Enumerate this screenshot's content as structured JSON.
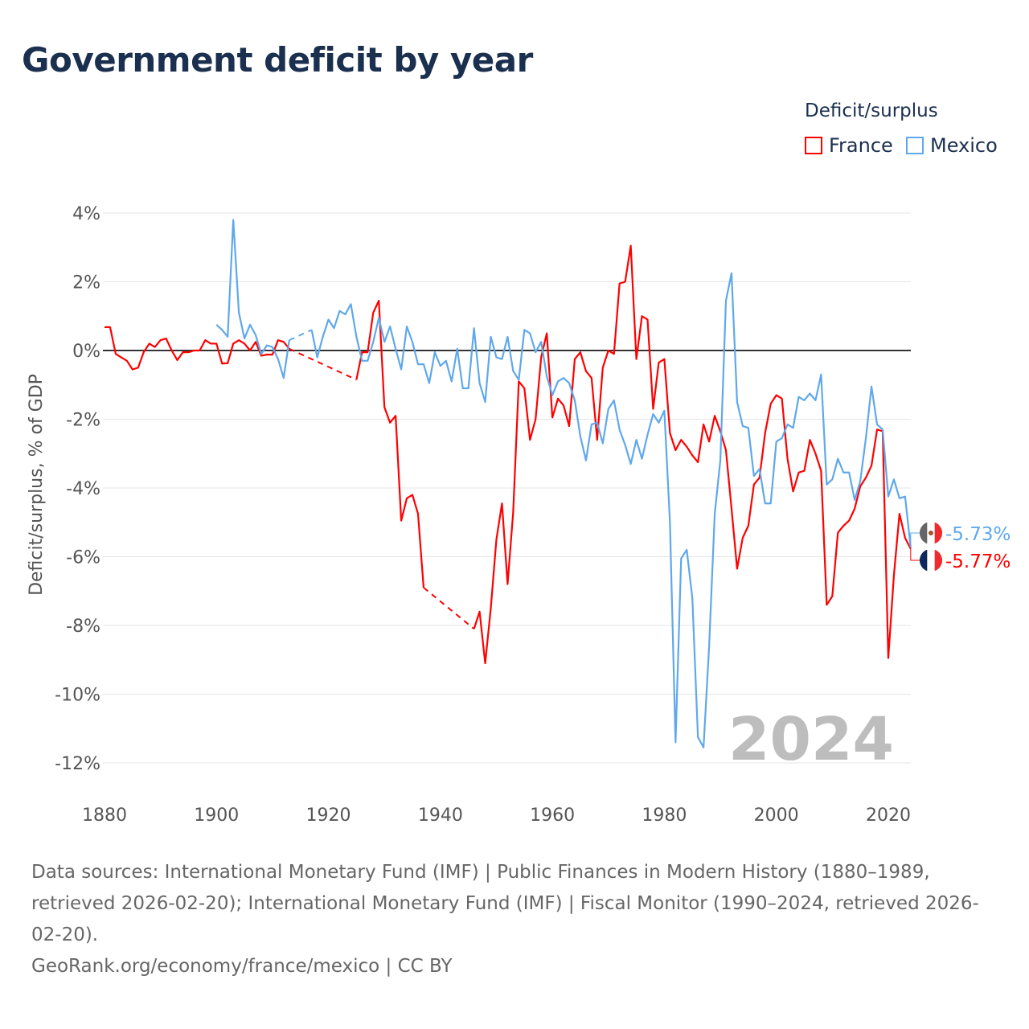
{
  "title": "Government deficit by year",
  "legend": {
    "title": "Deficit/surplus",
    "items": [
      {
        "name": "France",
        "color": "#ff0000"
      },
      {
        "name": "Mexico",
        "color": "#5fa8ec"
      }
    ]
  },
  "footer": {
    "sources": "Data sources: International Monetary Fund (IMF) | Public Finances in Modern History (1880–1989, retrieved 2026-02-20); International Monetary Fund (IMF) | Fiscal Monitor (1990–2024, retrieved 2026-02-20).",
    "credit": "GeoRank.org/economy/france/mexico | CC BY"
  },
  "chart_data": {
    "type": "line",
    "title": "Government deficit by year",
    "ylabel": "Deficit/surplus, % of GDP",
    "xlabel": "",
    "xlim": [
      1880,
      2024
    ],
    "ylim": [
      -12,
      4
    ],
    "xticks": [
      1880,
      1900,
      1920,
      1940,
      1960,
      1980,
      2000,
      2020
    ],
    "xtick_labels": [
      "1880",
      "1900",
      "1920",
      "1940",
      "1960",
      "1980",
      "2000",
      "2020"
    ],
    "yticks": [
      4,
      2,
      0,
      -2,
      -4,
      -6,
      -8,
      -10,
      -12
    ],
    "ytick_labels": [
      "4%",
      "2%",
      "0%",
      "-2%",
      "-4%",
      "-6%",
      "-8%",
      "-10%",
      "-12%"
    ],
    "year_watermark": "2024",
    "series": [
      {
        "name": "France",
        "color": "#ff0000",
        "end_label": "-5.77%",
        "start": 1880,
        "values": [
          0.68,
          0.68,
          -0.1,
          -0.2,
          -0.3,
          -0.55,
          -0.5,
          -0.05,
          0.2,
          0.1,
          0.3,
          0.35,
          0.0,
          -0.28,
          -0.05,
          -0.05,
          0,
          0,
          0.3,
          0.2,
          0.2,
          -0.38,
          -0.37,
          0.2,
          0.3,
          0.2,
          0.0,
          0.25,
          -0.15,
          -0.12,
          -0.12,
          0.3,
          0.25,
          0.05,
          null,
          null,
          null,
          null,
          null,
          null,
          null,
          null,
          null,
          null,
          null,
          -0.85,
          -0.05,
          -0.05,
          1.1,
          1.45,
          -1.65,
          -2.1,
          -1.9,
          -4.95,
          -4.3,
          -4.2,
          -4.75,
          -6.9,
          null,
          null,
          null,
          null,
          null,
          null,
          null,
          null,
          -8.1,
          -7.6,
          -9.1,
          -7.5,
          -5.5,
          -4.45,
          -6.8,
          -4.7,
          -0.9,
          -1.1,
          -2.6,
          -2.0,
          -0.2,
          0.5,
          -1.95,
          -1.4,
          -1.6,
          -2.2,
          -0.25,
          -0.05,
          -0.6,
          -0.8,
          -2.6,
          -0.5,
          0.0,
          -0.1,
          1.95,
          2.0,
          3.05,
          -0.25,
          1.0,
          0.9,
          -1.7,
          -0.35,
          -0.25,
          -2.4,
          -2.9,
          -2.6,
          -2.8,
          -3.05,
          -3.25,
          -2.15,
          -2.65,
          -1.9,
          -2.35,
          -2.9,
          -4.6,
          -6.35,
          -5.45,
          -5.1,
          -3.9,
          -3.7,
          -2.4,
          -1.55,
          -1.3,
          -1.4,
          -3.15,
          -4.1,
          -3.55,
          -3.5,
          -2.6,
          -3.0,
          -3.5,
          -7.4,
          -7.15,
          -5.3,
          -5.1,
          -4.95,
          -4.6,
          -3.95,
          -3.7,
          -3.35,
          -2.3,
          -2.35,
          -8.95,
          -6.55,
          -4.75,
          -5.45,
          -5.77
        ]
      },
      {
        "name": "Mexico",
        "color": "#5fa8ec",
        "end_label": "-5.73%",
        "start": 1900,
        "values": [
          0.75,
          0.6,
          0.4,
          3.8,
          1.1,
          0.35,
          0.75,
          0.45,
          -0.1,
          0.15,
          0.1,
          -0.25,
          -0.8,
          0.3,
          null,
          null,
          null,
          0.6,
          -0.2,
          0.4,
          0.9,
          0.65,
          1.15,
          1.05,
          1.35,
          0.4,
          -0.3,
          -0.3,
          0.25,
          0.95,
          0.25,
          0.7,
          0.05,
          -0.55,
          0.7,
          0.25,
          -0.4,
          -0.4,
          -0.95,
          -0.05,
          -0.45,
          -0.3,
          -0.9,
          0.05,
          -1.1,
          -1.1,
          0.65,
          -0.95,
          -1.5,
          0.4,
          -0.2,
          -0.25,
          0.4,
          -0.6,
          -0.85,
          0.6,
          0.5,
          -0.05,
          0.25,
          -0.75,
          -1.3,
          -0.9,
          -0.8,
          -0.95,
          -1.45,
          -2.5,
          -3.2,
          -2.15,
          -2.1,
          -2.7,
          -1.7,
          -1.45,
          -2.3,
          -2.75,
          -3.3,
          -2.6,
          -3.15,
          -2.45,
          -1.85,
          -2.1,
          -1.75,
          -5.0,
          -11.4,
          -6.05,
          -5.8,
          -7.2,
          -11.25,
          -11.55,
          -8.6,
          -4.75,
          -3.2,
          1.45,
          2.25,
          -1.5,
          -2.2,
          -2.25,
          -3.65,
          -3.45,
          -4.45,
          -4.45,
          -2.65,
          -2.55,
          -2.15,
          -2.25,
          -1.35,
          -1.45,
          -1.25,
          -1.45,
          -0.7,
          -3.9,
          -3.75,
          -3.15,
          -3.55,
          -3.55,
          -4.35,
          -3.8,
          -2.55,
          -1.05,
          -2.15,
          -2.3,
          -4.25,
          -3.75,
          -4.3,
          -4.25,
          -5.73
        ]
      }
    ]
  }
}
